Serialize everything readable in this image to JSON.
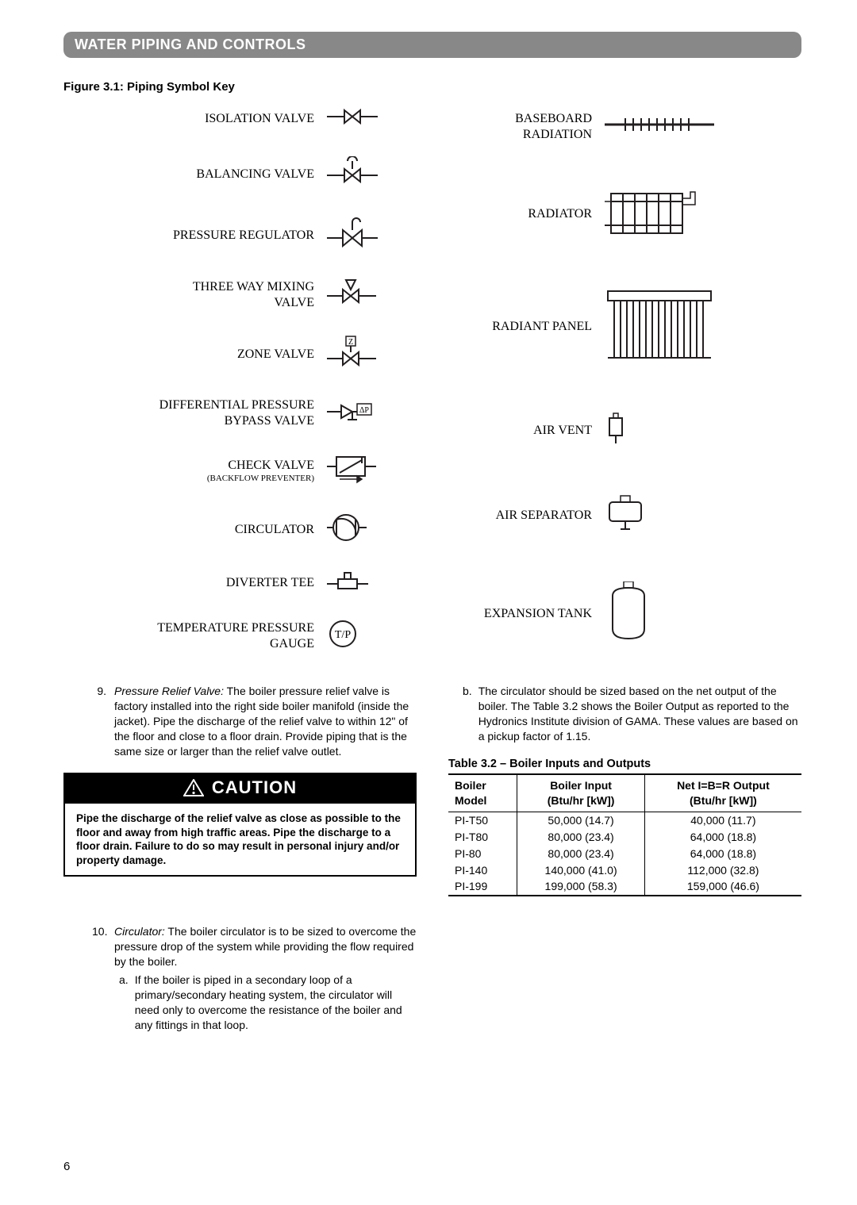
{
  "section_title": "WATER PIPING AND CONTROLS",
  "figure_title": "Figure 3.1: Piping Symbol Key",
  "symbols_left": [
    {
      "label": "ISOLATION VALVE",
      "svg": "iso-valve"
    },
    {
      "label": "BALANCING VALVE",
      "svg": "bal-valve"
    },
    {
      "label": "PRESSURE REGULATOR",
      "svg": "press-reg"
    },
    {
      "label": "THREE WAY MIXING VALVE",
      "svg": "three-way"
    },
    {
      "label": "ZONE VALVE",
      "svg": "zone-valve"
    },
    {
      "label": "DIFFERENTIAL PRESSURE BYPASS VALVE",
      "svg": "diff-bypass"
    },
    {
      "label": "CHECK VALVE",
      "sublabel": "(BACKFLOW PREVENTER)",
      "svg": "check-valve"
    },
    {
      "label": "CIRCULATOR",
      "svg": "circulator"
    },
    {
      "label": "DIVERTER TEE",
      "svg": "diverter"
    },
    {
      "label": "TEMPERATURE PRESSURE GAUGE",
      "svg": "tp-gauge"
    }
  ],
  "symbols_right": [
    {
      "label": "BASEBOARD RADIATION",
      "svg": "baseboard"
    },
    {
      "label": "RADIATOR",
      "svg": "radiator"
    },
    {
      "label": "RADIANT PANEL",
      "svg": "radiant-panel"
    },
    {
      "label": "AIR VENT",
      "svg": "air-vent"
    },
    {
      "label": "AIR SEPARATOR",
      "svg": "air-sep"
    },
    {
      "label": "EXPANSION TANK",
      "svg": "exp-tank"
    }
  ],
  "item9_num": "9.",
  "item9_lead": "Pressure Relief Valve:",
  "item9_text": " The boiler pressure relief valve is factory installed into the right side boiler manifold (inside the jacket). Pipe the discharge of the relief valve to within 12\" of the floor and close to a floor drain.  Provide piping that is the same size or larger than the relief valve outlet.",
  "caution_label": "CAUTION",
  "caution_text": "Pipe the discharge of the relief valve as close as possible to the floor and away from high traffic areas. Pipe the discharge to a floor drain. Failure to do so may result in personal injury and/or property damage.",
  "item10_num": "10.",
  "item10_lead": "Circulator:",
  "item10_text": " The boiler circulator is to be sized to overcome the pressure drop of the system while providing the flow required by the boiler.",
  "item10a_lbl": "a.",
  "item10a_text": "If the boiler is piped in a secondary loop of a primary/secondary heating system, the circulator will need only to overcome the resistance of the boiler and any fittings in that loop.",
  "item10b_lbl": "b.",
  "item10b_text": "The circulator should be sized based on the net output of the boiler. The Table 3.2 shows the Boiler Output as reported to the Hydronics Institute division of GAMA. These values are based on a pickup factor of 1.15.",
  "table_title": "Table 3.2 – Boiler Inputs and Outputs",
  "table": {
    "headers": [
      {
        "l1": "Boiler",
        "l2": "Model"
      },
      {
        "l1": "Boiler Input",
        "l2": "(Btu/hr [kW])"
      },
      {
        "l1": "Net I=B=R Output",
        "l2": "(Btu/hr [kW])"
      }
    ],
    "rows": [
      [
        "PI-T50",
        "50,000 (14.7)",
        "40,000 (11.7)"
      ],
      [
        "PI-T80",
        "80,000 (23.4)",
        "64,000 (18.8)"
      ],
      [
        "PI-80",
        "80,000 (23.4)",
        "64,000 (18.8)"
      ],
      [
        "PI-140",
        "140,000 (41.0)",
        "112,000 (32.8)"
      ],
      [
        "PI-199",
        "199,000 (58.3)",
        "159,000 (46.6)"
      ]
    ]
  },
  "page_number": "6",
  "colors": {
    "bar_bg": "#888888",
    "bar_fg": "#ffffff",
    "stroke": "#231f20"
  },
  "fonts": {
    "heading_family": "Arial, Helvetica, sans-serif",
    "body_family": "Arial, Helvetica, sans-serif",
    "symbol_label_family": "'Times New Roman', Times, serif",
    "heading_size_pt": 14,
    "body_size_pt": 10.5
  }
}
